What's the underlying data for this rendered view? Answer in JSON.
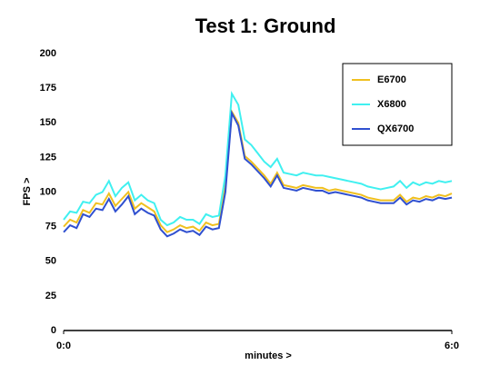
{
  "chart_data": {
    "type": "line",
    "title": "Test 1: Ground",
    "x_label": "minutes >",
    "y_label": "FPS >",
    "x": [
      0,
      0.1,
      0.2,
      0.3,
      0.4,
      0.5,
      0.6,
      0.7,
      0.8,
      0.9,
      1,
      1.1,
      1.2,
      1.3,
      1.4,
      1.5,
      1.6,
      1.7,
      1.8,
      1.9,
      2,
      2.1,
      2.2,
      2.3,
      2.4,
      2.5,
      2.6,
      2.7,
      2.8,
      2.9,
      3,
      3.1,
      3.2,
      3.3,
      3.4,
      3.5,
      3.6,
      3.7,
      3.8,
      3.9,
      4,
      4.1,
      4.2,
      4.3,
      4.4,
      4.5,
      4.6,
      4.7,
      4.8,
      4.9,
      5,
      5.1,
      5.2,
      5.3,
      5.4,
      5.5,
      5.6,
      5.7,
      5.8,
      5.9,
      6
    ],
    "series": [
      {
        "name": "E6700",
        "color": "#f0c020",
        "values": [
          75,
          80,
          78,
          87,
          85,
          92,
          91,
          99,
          90,
          95,
          100,
          88,
          92,
          89,
          86,
          76,
          71,
          73,
          76,
          74,
          75,
          72,
          78,
          76,
          77,
          104,
          158,
          150,
          126,
          122,
          117,
          112,
          106,
          114,
          105,
          104,
          103,
          105,
          104,
          103,
          103,
          101,
          102,
          101,
          100,
          99,
          98,
          96,
          95,
          94,
          94,
          94,
          98,
          93,
          96,
          95,
          97,
          96,
          98,
          97,
          99
        ]
      },
      {
        "name": "X6800",
        "color": "#40f0f0",
        "values": [
          80,
          86,
          85,
          93,
          92,
          98,
          100,
          108,
          97,
          103,
          107,
          94,
          98,
          94,
          92,
          80,
          76,
          78,
          82,
          80,
          80,
          77,
          84,
          82,
          83,
          112,
          171,
          163,
          138,
          134,
          128,
          122,
          118,
          124,
          114,
          113,
          112,
          114,
          113,
          112,
          112,
          111,
          110,
          109,
          108,
          107,
          106,
          104,
          103,
          102,
          103,
          104,
          108,
          103,
          107,
          105,
          107,
          106,
          108,
          107,
          108
        ]
      },
      {
        "name": "QX6700",
        "color": "#3050d0",
        "values": [
          71,
          76,
          74,
          84,
          82,
          88,
          87,
          95,
          86,
          91,
          97,
          84,
          88,
          85,
          83,
          73,
          68,
          70,
          73,
          71,
          72,
          69,
          75,
          73,
          74,
          100,
          157,
          148,
          124,
          120,
          115,
          110,
          104,
          112,
          103,
          102,
          101,
          103,
          102,
          101,
          101,
          99,
          100,
          99,
          98,
          97,
          96,
          94,
          93,
          92,
          92,
          92,
          96,
          91,
          94,
          93,
          95,
          94,
          96,
          95,
          96
        ]
      }
    ],
    "xlim": [
      0,
      6
    ],
    "xticks": [
      {
        "value": 0,
        "label": "0:0"
      },
      {
        "value": 6,
        "label": "6:0"
      }
    ],
    "ylim": [
      0,
      200
    ],
    "yticks": [
      0,
      25,
      50,
      75,
      100,
      125,
      150,
      175,
      200
    ],
    "legend": "top-right"
  }
}
